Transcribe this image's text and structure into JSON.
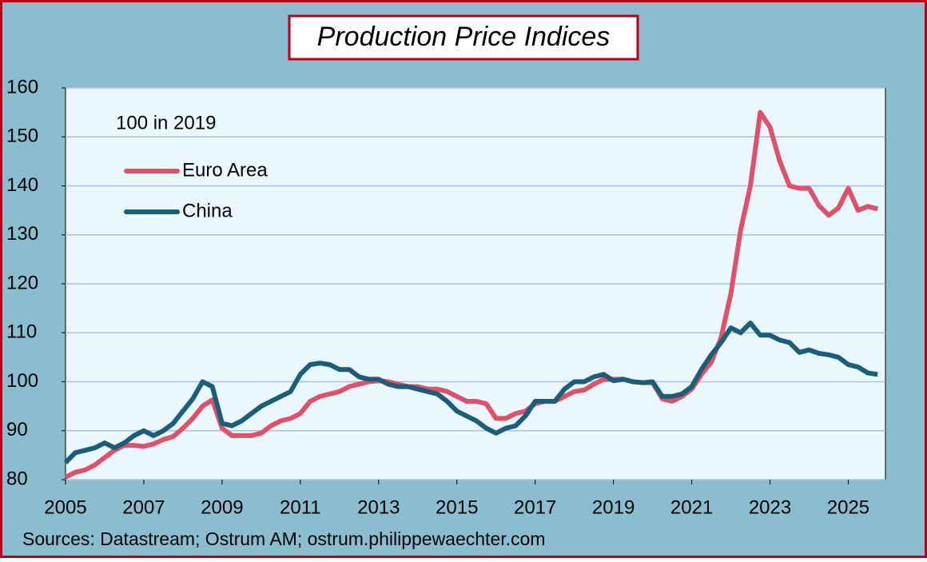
{
  "chart_data": {
    "type": "line",
    "title": "Production Price Indices",
    "annotation": "100 in 2019",
    "source": "Sources: Datastream; Ostrum AM; ostrum.philippewaechter.com",
    "x": [
      2005,
      2005.25,
      2005.5,
      2005.75,
      2006,
      2006.25,
      2006.5,
      2006.75,
      2007,
      2007.25,
      2007.5,
      2007.75,
      2008,
      2008.25,
      2008.5,
      2008.75,
      2009,
      2009.25,
      2009.5,
      2009.75,
      2010,
      2010.25,
      2010.5,
      2010.75,
      2011,
      2011.25,
      2011.5,
      2011.75,
      2012,
      2012.25,
      2012.5,
      2012.75,
      2013,
      2013.25,
      2013.5,
      2013.75,
      2014,
      2014.25,
      2014.5,
      2014.75,
      2015,
      2015.25,
      2015.5,
      2015.75,
      2016,
      2016.25,
      2016.5,
      2016.75,
      2017,
      2017.25,
      2017.5,
      2017.75,
      2018,
      2018.25,
      2018.5,
      2018.75,
      2019,
      2019.25,
      2019.5,
      2019.75,
      2020,
      2020.25,
      2020.5,
      2020.75,
      2021,
      2021.25,
      2021.5,
      2021.75,
      2022,
      2022.25,
      2022.5,
      2022.75,
      2023,
      2023.25,
      2023.5,
      2023.75,
      2024,
      2024.25,
      2024.5,
      2024.75,
      2025,
      2025.25,
      2025.5,
      2025.75
    ],
    "series": [
      {
        "name": "Euro Area",
        "color": "#e0506a",
        "values": [
          80.5,
          81.5,
          82,
          83,
          84.5,
          86,
          87,
          87,
          86.8,
          87.3,
          88.2,
          88.8,
          90.5,
          92.5,
          95,
          96.3,
          90.5,
          89,
          89,
          89,
          89.5,
          91,
          92,
          92.5,
          93.5,
          96,
          97,
          97.5,
          98,
          99,
          99.5,
          100,
          100.2,
          100,
          99.5,
          99,
          99,
          98.5,
          98.5,
          98,
          97,
          96,
          96,
          95.5,
          92.5,
          92.5,
          93.5,
          94,
          95.5,
          96,
          96,
          97,
          98,
          98.3,
          99.5,
          100.5,
          100.5,
          100.5,
          100,
          99.8,
          99.8,
          96.5,
          96,
          97,
          98.5,
          101.5,
          104,
          109,
          118,
          131,
          140,
          155,
          152,
          145,
          140,
          139.5,
          139.5,
          136,
          134,
          135.5,
          139.5,
          135,
          135.8,
          135.3
        ]
      },
      {
        "name": "China",
        "color": "#1a5e7a",
        "values": [
          83.5,
          85.5,
          86,
          86.5,
          87.5,
          86.5,
          87.5,
          89,
          90,
          89,
          90,
          91.5,
          94,
          96.5,
          100,
          99,
          91.5,
          91,
          92,
          93.5,
          95,
          96,
          97,
          98,
          101.5,
          103.5,
          103.8,
          103.5,
          102.5,
          102.5,
          101,
          100.5,
          100.5,
          99.5,
          99,
          99,
          98.5,
          98,
          97.5,
          96,
          94,
          93,
          92,
          90.5,
          89.5,
          90.5,
          91,
          93,
          96,
          96,
          96,
          98.5,
          100,
          100,
          101,
          101.5,
          100.2,
          100.5,
          100,
          99.8,
          100,
          97,
          97,
          97.5,
          99,
          102.5,
          105.5,
          108,
          111,
          110,
          112,
          109.5,
          109.5,
          108.5,
          108,
          106,
          106.5,
          105.8,
          105.5,
          105,
          103.5,
          103,
          101.8,
          101.5
        ]
      }
    ],
    "xlim": [
      2005,
      2025.95
    ],
    "xticks": [
      2005,
      2007,
      2009,
      2011,
      2013,
      2015,
      2017,
      2019,
      2021,
      2023,
      2025
    ],
    "ylim": [
      80,
      160
    ],
    "yticks": [
      80,
      90,
      100,
      110,
      120,
      130,
      140,
      150,
      160
    ],
    "grid": true
  }
}
